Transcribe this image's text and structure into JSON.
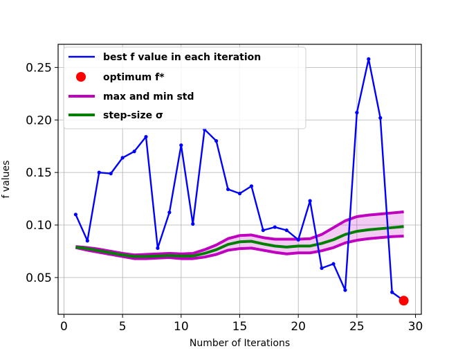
{
  "chart_data": {
    "type": "line",
    "title": "",
    "xlabel": "Number of Iterations",
    "ylabel": "f values",
    "xlim": [
      -0.5,
      30.5
    ],
    "ylim": [
      0.015,
      0.272
    ],
    "xticks": [
      0,
      5,
      10,
      15,
      20,
      25,
      30
    ],
    "xtick_labels": [
      "0",
      "5",
      "10",
      "15",
      "20",
      "25",
      "30"
    ],
    "yticks": [
      0.05,
      0.1,
      0.15,
      0.2,
      0.25
    ],
    "ytick_labels": [
      "0.05",
      "0.10",
      "0.15",
      "0.20",
      "0.25"
    ],
    "grid": true,
    "legend_position": "top-left",
    "legend": [
      {
        "label": "best f value in each iteration",
        "style": "line",
        "color": "#0000ff"
      },
      {
        "label": "optimum f*",
        "style": "dot",
        "color": "#ff0000"
      },
      {
        "label": "max and min std",
        "style": "line",
        "color": "#bf00bf"
      },
      {
        "label": "step-size σ",
        "style": "line",
        "color": "#007f00"
      }
    ],
    "x": [
      1,
      2,
      3,
      4,
      5,
      6,
      7,
      8,
      9,
      10,
      11,
      12,
      13,
      14,
      15,
      16,
      17,
      18,
      19,
      20,
      21,
      22,
      23,
      24,
      25,
      26,
      27,
      28,
      29
    ],
    "series": [
      {
        "name": "best f value in each iteration",
        "color": "#0000ff",
        "values": [
          0.11,
          0.085,
          0.15,
          0.149,
          0.164,
          0.17,
          0.184,
          0.078,
          0.112,
          0.176,
          0.101,
          0.191,
          0.18,
          0.134,
          0.13,
          0.137,
          0.095,
          0.098,
          0.095,
          0.086,
          0.123,
          0.059,
          0.063,
          0.038,
          0.207,
          0.258,
          0.202,
          0.036,
          0.028
        ]
      },
      {
        "name": "max and min std",
        "color": "#bf00bf",
        "upper": [
          0.0795,
          0.0785,
          0.077,
          0.075,
          0.073,
          0.0715,
          0.072,
          0.0725,
          0.073,
          0.0725,
          0.073,
          0.0765,
          0.081,
          0.087,
          0.09,
          0.0905,
          0.088,
          0.0865,
          0.0865,
          0.0865,
          0.087,
          0.091,
          0.0975,
          0.104,
          0.108,
          0.1095,
          0.1105,
          0.1115,
          0.1125
        ],
        "lower": [
          0.0785,
          0.076,
          0.074,
          0.072,
          0.07,
          0.068,
          0.068,
          0.0685,
          0.069,
          0.068,
          0.068,
          0.0695,
          0.072,
          0.076,
          0.0775,
          0.078,
          0.076,
          0.074,
          0.0725,
          0.0735,
          0.0735,
          0.0755,
          0.0785,
          0.083,
          0.0855,
          0.087,
          0.088,
          0.089,
          0.0895
        ]
      },
      {
        "name": "step-size σ",
        "color": "#007f00",
        "values": [
          0.079,
          0.0775,
          0.0755,
          0.0735,
          0.0715,
          0.07,
          0.07,
          0.0705,
          0.071,
          0.0705,
          0.0705,
          0.073,
          0.0765,
          0.0815,
          0.084,
          0.0845,
          0.082,
          0.08,
          0.079,
          0.08,
          0.08,
          0.0825,
          0.086,
          0.091,
          0.094,
          0.0955,
          0.0965,
          0.0975,
          0.0985
        ]
      }
    ],
    "optimum": {
      "x": 29,
      "y": 0.028,
      "color": "#ff0000"
    }
  }
}
